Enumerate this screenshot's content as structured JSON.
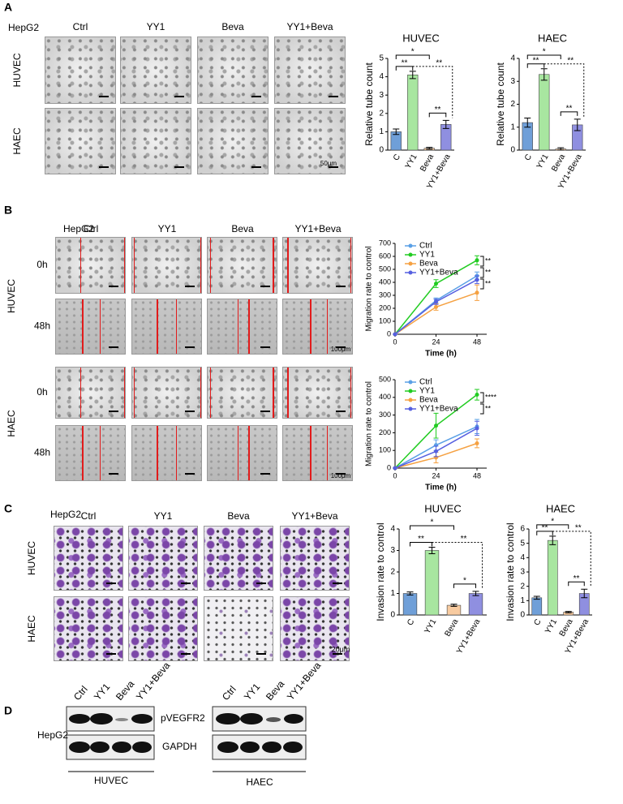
{
  "panel_labels": [
    "A",
    "B",
    "C",
    "D"
  ],
  "panel_a": {
    "cell_line": "HepG2",
    "columns": [
      "Ctrl",
      "YY1",
      "Beva",
      "YY1+Beva"
    ],
    "rows": [
      "HUVEC",
      "HAEC"
    ],
    "scale_bar": "50μm"
  },
  "panel_b": {
    "cell_line": "HepG2",
    "columns": [
      "Ctrl",
      "YY1",
      "Beva",
      "YY1+Beva"
    ],
    "rows": [
      "HUVEC",
      "HAEC"
    ],
    "times": [
      "0h",
      "48h"
    ],
    "scale_bar": "100μm"
  },
  "panel_c": {
    "cell_line": "HepG2",
    "columns": [
      "Ctrl",
      "YY1",
      "Beva",
      "YY1+Beva"
    ],
    "rows": [
      "HUVEC",
      "HAEC"
    ],
    "scale_bar": "20μm"
  },
  "panel_d": {
    "cell_line": "HepG2",
    "lanes": [
      "Ctrl",
      "YY1",
      "Beva",
      "YY1+Beva"
    ],
    "proteins": [
      "pVEGFR2",
      "GAPDH"
    ],
    "groups": [
      "HUVEC",
      "HAEC"
    ]
  },
  "chart_data": [
    {
      "type": "bar",
      "title": "HUVEC",
      "ylabel": "Relative tube count",
      "categories": [
        "C",
        "YY1",
        "Beva",
        "YY1+Beva"
      ],
      "values": [
        1.0,
        4.1,
        0.1,
        1.4
      ],
      "errors": [
        0.15,
        0.2,
        0.05,
        0.22
      ],
      "colors": [
        "#6f9fd8",
        "#a8e6a0",
        "#f8cba0",
        "#8f8fe0"
      ],
      "ylim": [
        0,
        5
      ],
      "yticks": [
        0,
        1,
        2,
        3,
        4,
        5
      ],
      "annotations": [
        "**",
        "*",
        "**",
        "**"
      ]
    },
    {
      "type": "bar",
      "title": "HAEC",
      "ylabel": "Relative tube count",
      "categories": [
        "C",
        "YY1",
        "Beva",
        "YY1+Beva"
      ],
      "values": [
        1.2,
        3.3,
        0.05,
        1.1
      ],
      "errors": [
        0.2,
        0.25,
        0.05,
        0.25
      ],
      "colors": [
        "#6f9fd8",
        "#a8e6a0",
        "#f8cba0",
        "#8f8fe0"
      ],
      "ylim": [
        0,
        4
      ],
      "yticks": [
        0,
        1,
        2,
        3,
        4
      ],
      "annotations": [
        "**",
        "*",
        "**",
        "**"
      ]
    },
    {
      "type": "line",
      "xlabel": "Time (h)",
      "ylabel": "Migration rate to control",
      "x": [
        0,
        24,
        48
      ],
      "xlim": [
        0,
        48
      ],
      "xticks": [
        0,
        24,
        48
      ],
      "ylim": [
        0,
        700
      ],
      "yticks": [
        0,
        100,
        200,
        300,
        400,
        500,
        600,
        700
      ],
      "series": [
        {
          "name": "Ctrl",
          "color": "#5aa0e6",
          "values": [
            0,
            260,
            450
          ],
          "errors": [
            0,
            20,
            30
          ]
        },
        {
          "name": "YY1",
          "color": "#22cc22",
          "values": [
            0,
            390,
            570
          ],
          "errors": [
            0,
            30,
            35
          ]
        },
        {
          "name": "Beva",
          "color": "#f5a142",
          "values": [
            0,
            210,
            320
          ],
          "errors": [
            0,
            25,
            60
          ]
        },
        {
          "name": "YY1+Beva",
          "color": "#5660e0",
          "values": [
            0,
            250,
            420
          ],
          "errors": [
            0,
            20,
            30
          ]
        }
      ],
      "annotations": [
        "**",
        "**",
        "**"
      ]
    },
    {
      "type": "line",
      "xlabel": "Time (h)",
      "ylabel": "Migration rate to control",
      "x": [
        0,
        24,
        48
      ],
      "xlim": [
        0,
        48
      ],
      "xticks": [
        0,
        24,
        48
      ],
      "ylim": [
        0,
        500
      ],
      "yticks": [
        0,
        100,
        200,
        300,
        400,
        500
      ],
      "series": [
        {
          "name": "Ctrl",
          "color": "#5aa0e6",
          "values": [
            0,
            130,
            235
          ],
          "errors": [
            0,
            30,
            40
          ]
        },
        {
          "name": "YY1",
          "color": "#22cc22",
          "values": [
            0,
            240,
            415
          ],
          "errors": [
            0,
            70,
            30
          ]
        },
        {
          "name": "Beva",
          "color": "#f5a142",
          "values": [
            0,
            60,
            140
          ],
          "errors": [
            0,
            30,
            25
          ]
        },
        {
          "name": "YY1+Beva",
          "color": "#5660e0",
          "values": [
            0,
            95,
            225
          ],
          "errors": [
            0,
            30,
            40
          ]
        }
      ],
      "annotations": [
        "****",
        "**"
      ]
    },
    {
      "type": "bar",
      "title": "HUVEC",
      "ylabel": "Invasion rate to control",
      "categories": [
        "C",
        "YY1",
        "Beva",
        "YY1+Beva"
      ],
      "values": [
        1.0,
        3.0,
        0.45,
        1.0
      ],
      "errors": [
        0.07,
        0.15,
        0.05,
        0.1
      ],
      "colors": [
        "#6f9fd8",
        "#a8e6a0",
        "#f8cba0",
        "#8f8fe0"
      ],
      "ylim": [
        0,
        4
      ],
      "yticks": [
        0,
        1,
        2,
        3,
        4
      ],
      "annotations": [
        "**",
        "*",
        "**",
        "*"
      ]
    },
    {
      "type": "bar",
      "title": "HAEC",
      "ylabel": "Invasion rate to control",
      "categories": [
        "C",
        "YY1",
        "Beva",
        "YY1+Beva"
      ],
      "values": [
        1.2,
        5.2,
        0.2,
        1.5
      ],
      "errors": [
        0.1,
        0.3,
        0.05,
        0.3
      ],
      "colors": [
        "#6f9fd8",
        "#a8e6a0",
        "#f8cba0",
        "#8f8fe0"
      ],
      "ylim": [
        0,
        6
      ],
      "yticks": [
        0,
        1,
        2,
        3,
        4,
        5,
        6
      ],
      "annotations": [
        "**",
        "*",
        "**",
        "**"
      ]
    }
  ]
}
